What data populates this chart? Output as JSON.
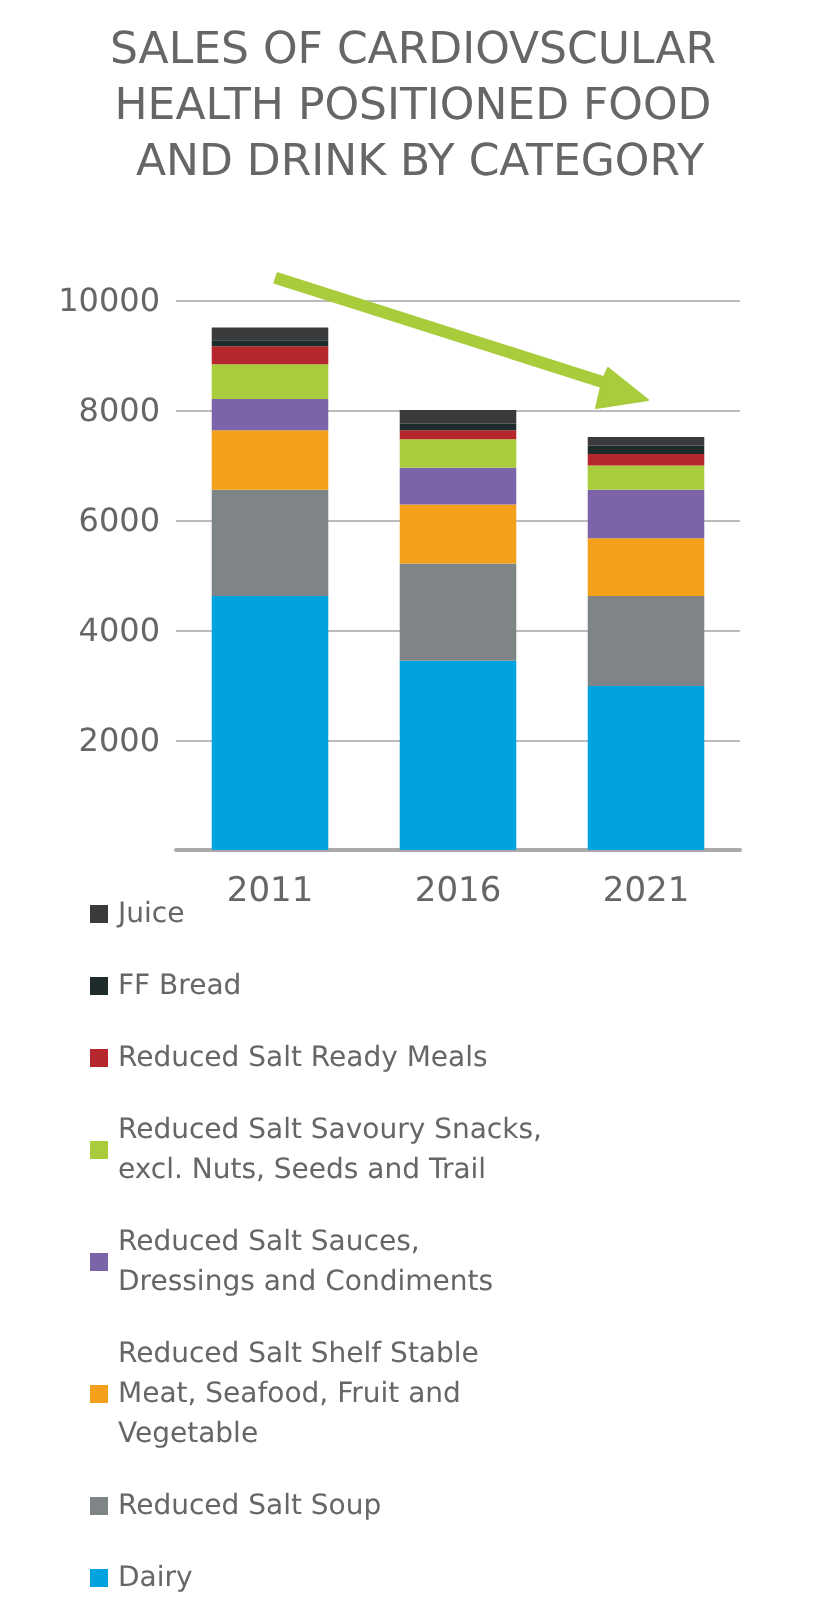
{
  "chart_data": {
    "type": "bar",
    "title": "SALES OF CARDIOVSCULAR HEALTH POSITIONED FOOD AND DRINK BY CATEGORY",
    "categories": [
      "2011",
      "2016",
      "2021"
    ],
    "stacked": true,
    "series": [
      {
        "name": "Dairy",
        "color": "#00a3e0",
        "values": [
          4620,
          3440,
          2980
        ]
      },
      {
        "name": "Reduced Salt Soup",
        "color": "#7f8587",
        "values": [
          1930,
          1770,
          1640
        ]
      },
      {
        "name": "Reduced Salt Shelf Stable Meat, Seafood, Fruit and Vegetable",
        "color": "#f5a01a",
        "values": [
          1080,
          1070,
          1050
        ]
      },
      {
        "name": "Reduced Salt Sauces, Dressings and Condiments",
        "color": "#7b64a8",
        "values": [
          570,
          670,
          880
        ]
      },
      {
        "name": "Reduced Salt Savoury Snacks, excl. Nuts, Seeds and Trail",
        "color": "#a8cc3c",
        "values": [
          630,
          520,
          440
        ]
      },
      {
        "name": "Reduced Salt Ready Meals",
        "color": "#b5272d",
        "values": [
          330,
          160,
          210
        ]
      },
      {
        "name": "FF Bread",
        "color": "#1d2b2b",
        "values": [
          110,
          120,
          150
        ]
      },
      {
        "name": "Juice",
        "color": "#3a3a3c",
        "values": [
          230,
          250,
          160
        ]
      }
    ],
    "ylim": [
      0,
      10000
    ],
    "yticks": [
      2000,
      4000,
      6000,
      8000,
      10000
    ],
    "grid": "y",
    "legend": "bottom"
  }
}
